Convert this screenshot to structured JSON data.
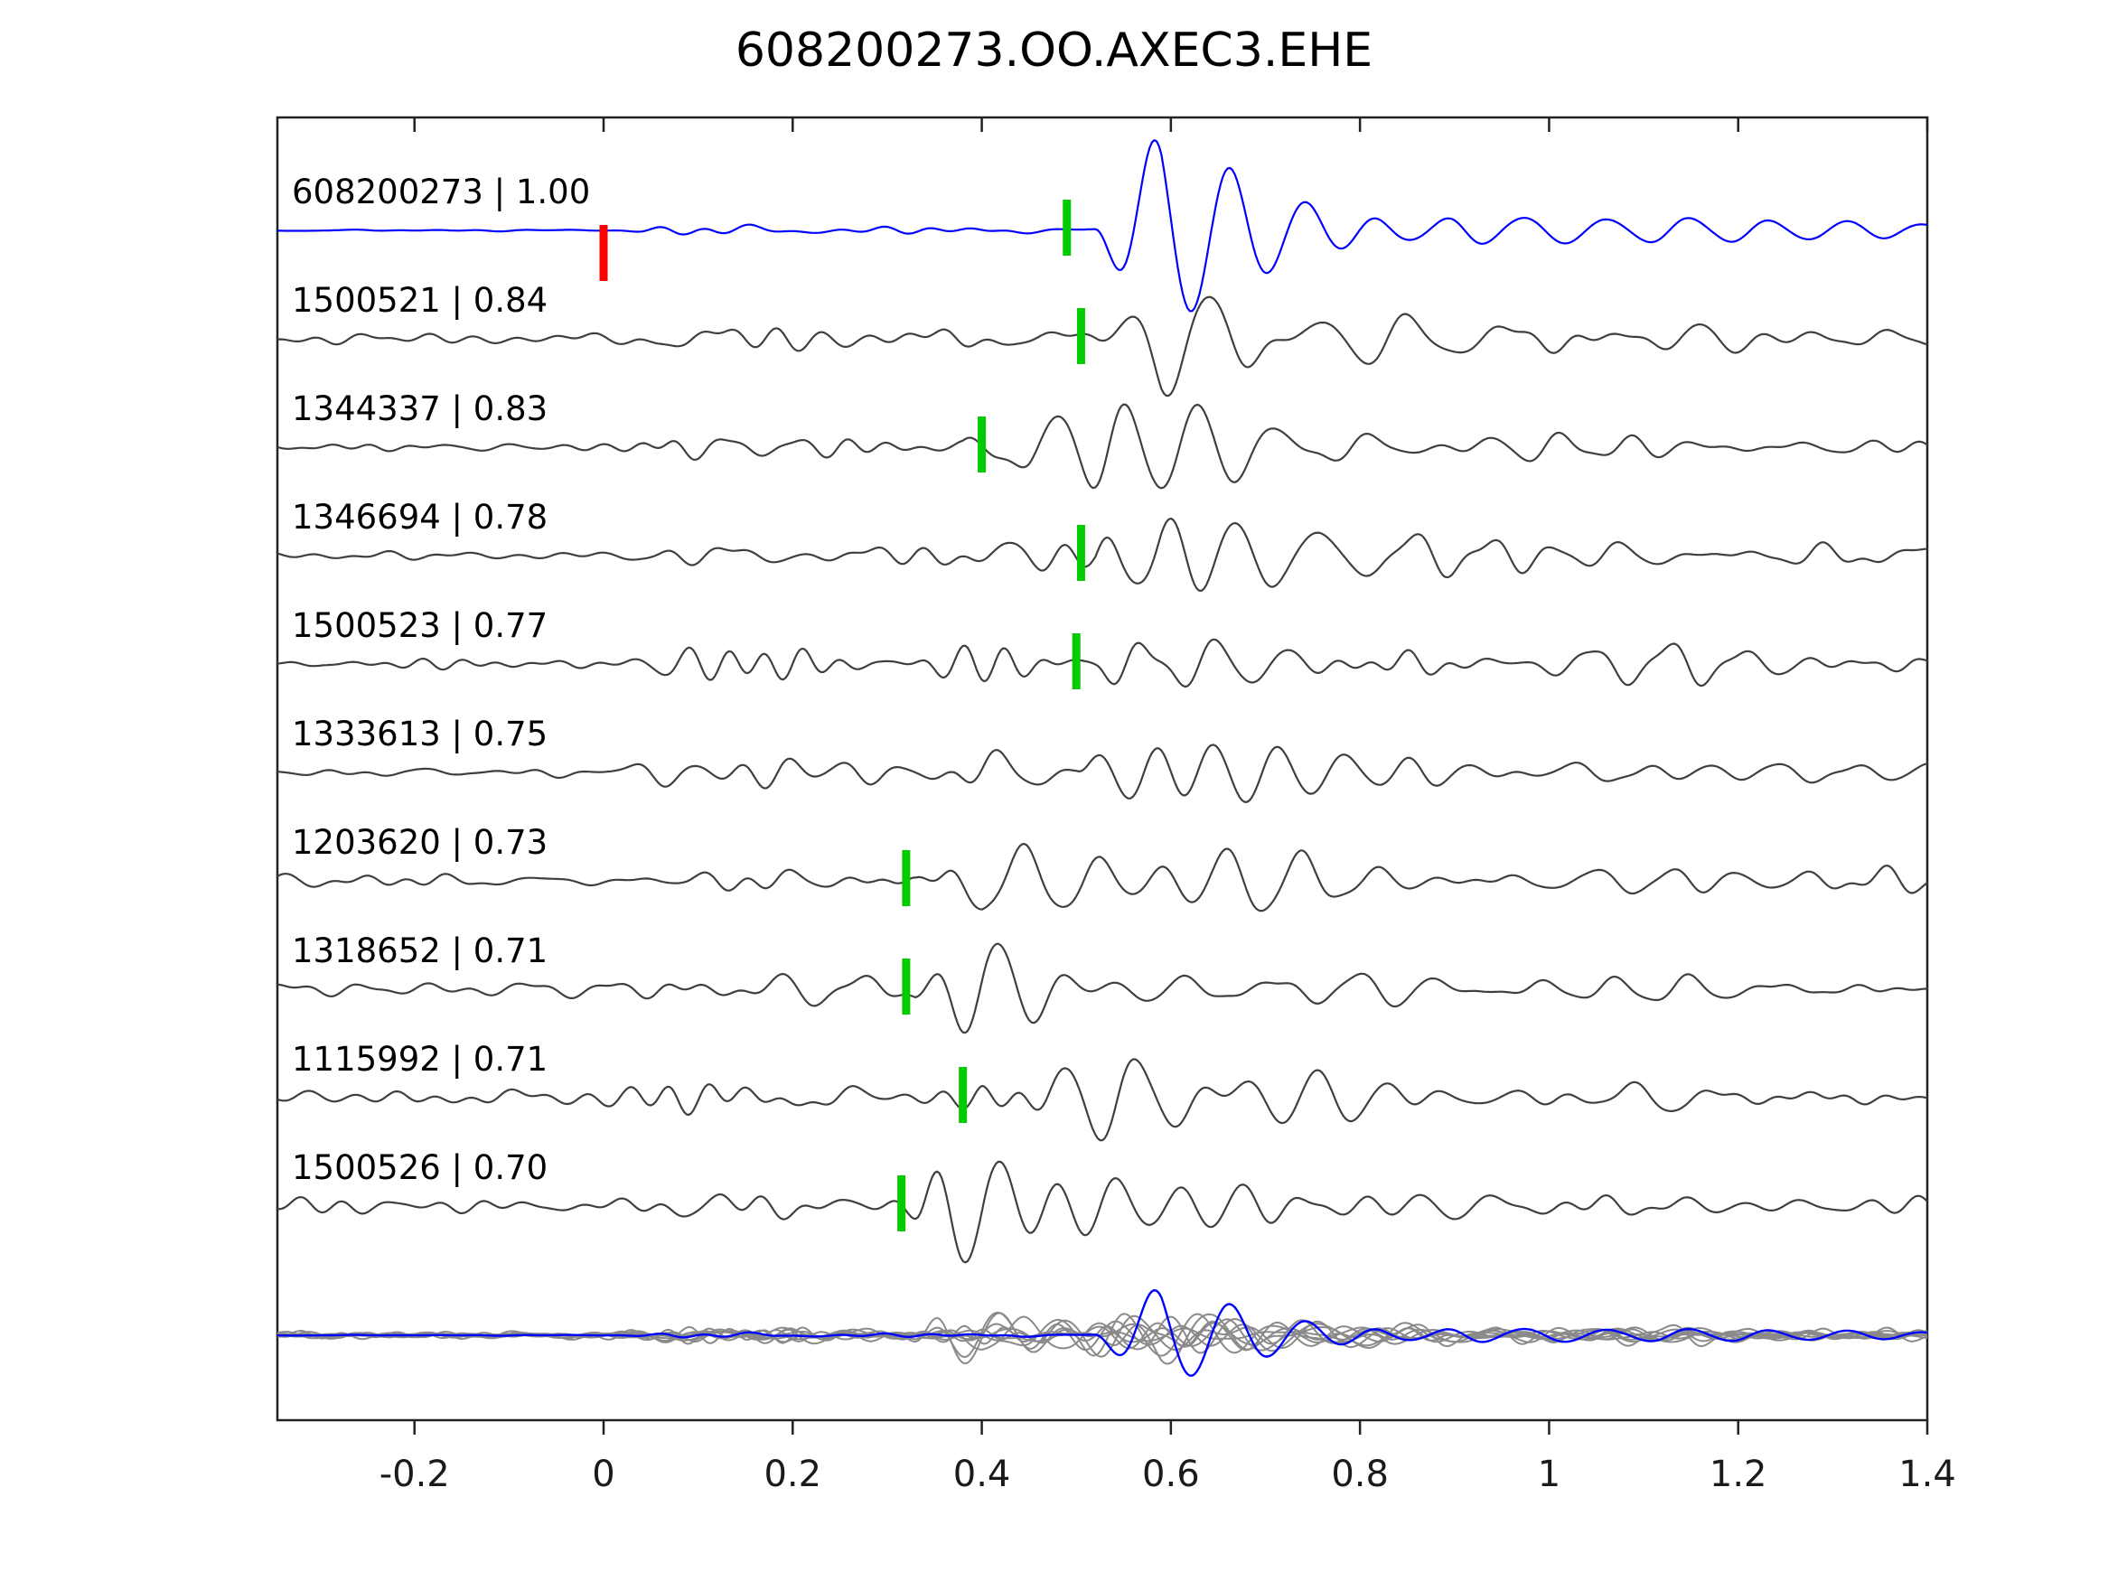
{
  "chart_data": {
    "type": "line",
    "title": "608200273.OO.AXEC3.EHE",
    "xlabel": "",
    "ylabel": "",
    "grid": false,
    "xlim": [
      -0.345,
      1.4
    ],
    "xticks": [
      -0.2,
      0,
      0.2,
      0.4,
      0.6,
      0.8,
      1,
      1.2,
      1.4
    ],
    "xtick_labels": [
      "-0.2",
      "0",
      "0.2",
      "0.4",
      "0.6",
      "0.8",
      "1",
      "1.2",
      "1.4"
    ],
    "colors": {
      "template_blue": "#0000ff",
      "match_gray": "#3f3f3f",
      "pick_green": "#00cc00",
      "origin_red": "#ff0000",
      "overlay_gray": "#8a8a8a",
      "axis": "#222222",
      "text": "#000000"
    },
    "traces": [
      {
        "label": "608200273 | 1.00",
        "id": "608200273",
        "cc": 1.0,
        "color": "#0000ff",
        "pick": 0.49,
        "red_marker": 0.0,
        "onset": 0.52,
        "pre": 0.015,
        "mid": 0.07,
        "amp": 1.35,
        "tail": 0.12,
        "seed": 3
      },
      {
        "label": "1500521 | 0.84",
        "id": "1500521",
        "cc": 0.84,
        "color": "#3f3f3f",
        "pick": 0.505,
        "red_marker": null,
        "onset": 0.52,
        "pre": 0.1,
        "mid": 0.3,
        "amp": 1.0,
        "tail": 0.2,
        "seed": 7
      },
      {
        "label": "1344337 | 0.83",
        "id": "1344337",
        "cc": 0.83,
        "color": "#3f3f3f",
        "pick": 0.4,
        "red_marker": null,
        "onset": 0.38,
        "pre": 0.1,
        "mid": 0.26,
        "amp": 1.05,
        "tail": 0.18,
        "seed": 11
      },
      {
        "label": "1346694 | 0.78",
        "id": "1346694",
        "cc": 0.78,
        "color": "#3f3f3f",
        "pick": 0.505,
        "red_marker": null,
        "onset": 0.52,
        "pre": 0.1,
        "mid": 0.32,
        "amp": 1.0,
        "tail": 0.2,
        "seed": 13
      },
      {
        "label": "1500523 | 0.77",
        "id": "1500523",
        "cc": 0.77,
        "color": "#3f3f3f",
        "pick": 0.5,
        "red_marker": null,
        "onset": 0.52,
        "pre": 0.12,
        "mid": 0.34,
        "amp": 1.0,
        "tail": 0.2,
        "seed": 17
      },
      {
        "label": "1333613 | 0.75",
        "id": "1333613",
        "cc": 0.75,
        "color": "#3f3f3f",
        "pick": null,
        "red_marker": null,
        "onset": 0.5,
        "pre": 0.1,
        "mid": 0.3,
        "amp": 1.0,
        "tail": 0.2,
        "seed": 19
      },
      {
        "label": "1203620 | 0.73",
        "id": "1203620",
        "cc": 0.73,
        "color": "#3f3f3f",
        "pick": 0.32,
        "red_marker": null,
        "onset": 0.33,
        "pre": 0.14,
        "mid": 0.26,
        "amp": 0.95,
        "tail": 0.22,
        "seed": 23
      },
      {
        "label": "1318652 | 0.71",
        "id": "1318652",
        "cc": 0.71,
        "color": "#3f3f3f",
        "pick": 0.32,
        "red_marker": null,
        "onset": 0.33,
        "pre": 0.14,
        "mid": 0.24,
        "amp": 0.95,
        "tail": 0.22,
        "seed": 29
      },
      {
        "label": "1115992 | 0.71",
        "id": "1115992",
        "cc": 0.71,
        "color": "#3f3f3f",
        "pick": 0.38,
        "red_marker": null,
        "onset": 0.4,
        "pre": 0.14,
        "mid": 0.26,
        "amp": 0.95,
        "tail": 0.22,
        "seed": 31
      },
      {
        "label": "1500526 | 0.70",
        "id": "1500526",
        "cc": 0.7,
        "color": "#3f3f3f",
        "pick": 0.315,
        "red_marker": null,
        "onset": 0.33,
        "pre": 0.16,
        "mid": 0.3,
        "amp": 0.95,
        "tail": 0.22,
        "seed": 37
      }
    ],
    "overlay": {
      "gray_color": "#8a8a8a",
      "blue_color": "#0000ff",
      "scale": 0.5
    }
  }
}
